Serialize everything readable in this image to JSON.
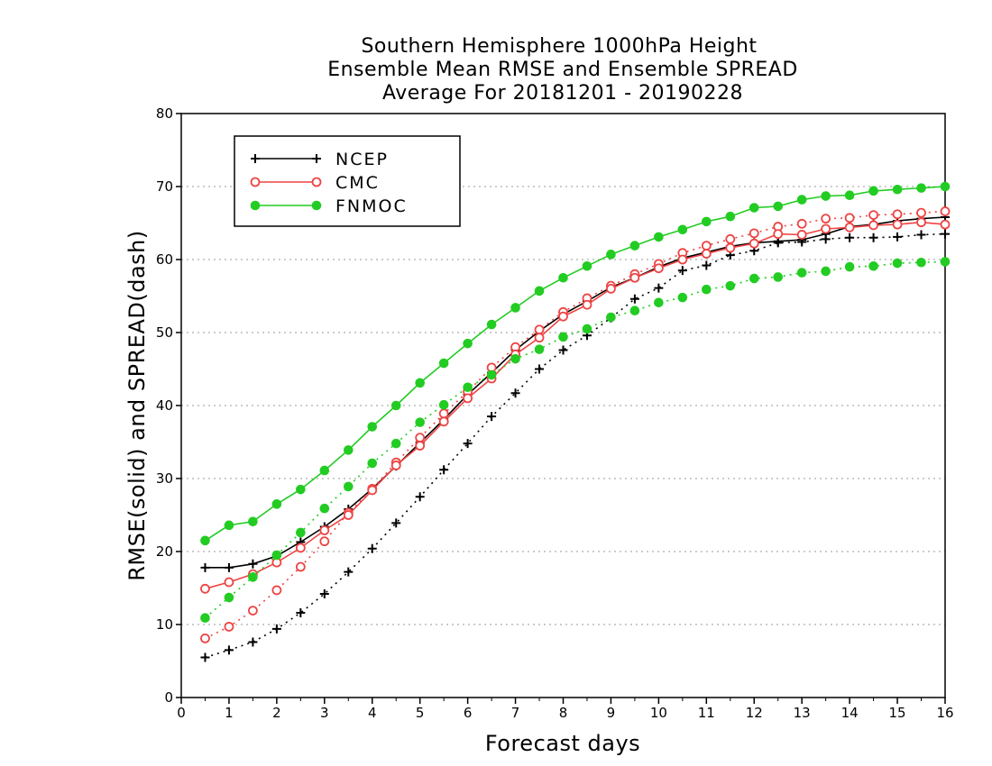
{
  "chart_data": {
    "type": "line",
    "title_lines": [
      "Southern Hemisphere 1000hPa Height",
      "Ensemble Mean RMSE and Ensemble SPREAD",
      "Average For 20181201 - 20190228"
    ],
    "xlabel": "Forecast days",
    "ylabel": "RMSE(solid) and SPREAD(dash)",
    "xlim": [
      0,
      16
    ],
    "ylim": [
      0,
      80
    ],
    "xticks": [
      "0",
      "1",
      "2",
      "3",
      "4",
      "5",
      "6",
      "7",
      "8",
      "9",
      "10",
      "11",
      "12",
      "13",
      "14",
      "15",
      "16"
    ],
    "yticks": [
      "0",
      "10",
      "20",
      "30",
      "40",
      "50",
      "60",
      "70",
      "80"
    ],
    "grid": "horizontal dotted",
    "legend_position": "top-left",
    "x": [
      0.5,
      1,
      1.5,
      2,
      2.5,
      3,
      3.5,
      4,
      4.5,
      5,
      5.5,
      6,
      6.5,
      7,
      7.5,
      8,
      8.5,
      9,
      9.5,
      10,
      10.5,
      11,
      11.5,
      12,
      12.5,
      13,
      13.5,
      14,
      14.5,
      15,
      15.5,
      16
    ],
    "series": [
      {
        "name": "NCEP",
        "color": "#000000",
        "marker": "plus",
        "rmse": [
          17.8,
          17.8,
          18.3,
          19.4,
          21.3,
          23.4,
          25.8,
          28.6,
          31.7,
          34.9,
          38.1,
          41.5,
          44.5,
          47.6,
          50.2,
          52.5,
          54.3,
          56.2,
          57.5,
          59.0,
          60.2,
          61.0,
          61.8,
          62.3,
          62.5,
          62.7,
          63.5,
          64.5,
          64.8,
          65.3,
          65.6,
          65.8
        ],
        "spread": [
          5.5,
          6.5,
          7.6,
          9.4,
          11.6,
          14.2,
          17.2,
          20.4,
          23.9,
          27.5,
          31.2,
          34.8,
          38.5,
          41.7,
          45.0,
          47.6,
          49.6,
          52.0,
          54.6,
          56.1,
          58.5,
          59.2,
          60.6,
          61.2,
          62.3,
          62.4,
          62.8,
          63.0,
          63.0,
          63.1,
          63.4,
          63.5
        ]
      },
      {
        "name": "CMC",
        "color": "#ee4444",
        "marker": "open-circle",
        "rmse": [
          14.9,
          15.8,
          16.9,
          18.5,
          20.5,
          22.9,
          25.0,
          28.4,
          31.8,
          34.5,
          37.8,
          41.0,
          43.7,
          47.0,
          49.3,
          52.2,
          53.8,
          56.0,
          57.5,
          58.8,
          60.0,
          60.8,
          61.6,
          62.2,
          63.5,
          63.4,
          64.2,
          64.4,
          64.7,
          64.8,
          65.1,
          64.8
        ],
        "spread": [
          8.1,
          9.7,
          11.9,
          14.7,
          17.9,
          21.4,
          25.3,
          28.6,
          32.2,
          35.6,
          38.9,
          41.9,
          45.2,
          48.0,
          50.4,
          52.8,
          54.7,
          56.4,
          58.0,
          59.4,
          60.9,
          61.9,
          62.8,
          63.6,
          64.5,
          64.9,
          65.6,
          65.7,
          66.1,
          66.2,
          66.4,
          66.6
        ]
      },
      {
        "name": "FNMOC",
        "color": "#22cc22",
        "marker": "filled-circle",
        "rmse": [
          21.5,
          23.6,
          24.1,
          26.5,
          28.5,
          31.1,
          33.9,
          37.1,
          40.0,
          43.1,
          45.8,
          48.5,
          51.1,
          53.4,
          55.7,
          57.5,
          59.1,
          60.7,
          61.9,
          63.1,
          64.1,
          65.2,
          65.9,
          67.1,
          67.3,
          68.2,
          68.7,
          68.8,
          69.4,
          69.6,
          69.8,
          70.0
        ],
        "spread": [
          10.9,
          13.7,
          16.5,
          19.5,
          22.6,
          25.9,
          28.9,
          32.1,
          34.8,
          37.7,
          40.1,
          42.5,
          44.2,
          46.4,
          47.7,
          49.4,
          50.5,
          52.1,
          53.0,
          54.1,
          54.8,
          55.9,
          56.4,
          57.4,
          57.6,
          58.2,
          58.4,
          59.0,
          59.1,
          59.5,
          59.6,
          59.7
        ]
      }
    ]
  }
}
